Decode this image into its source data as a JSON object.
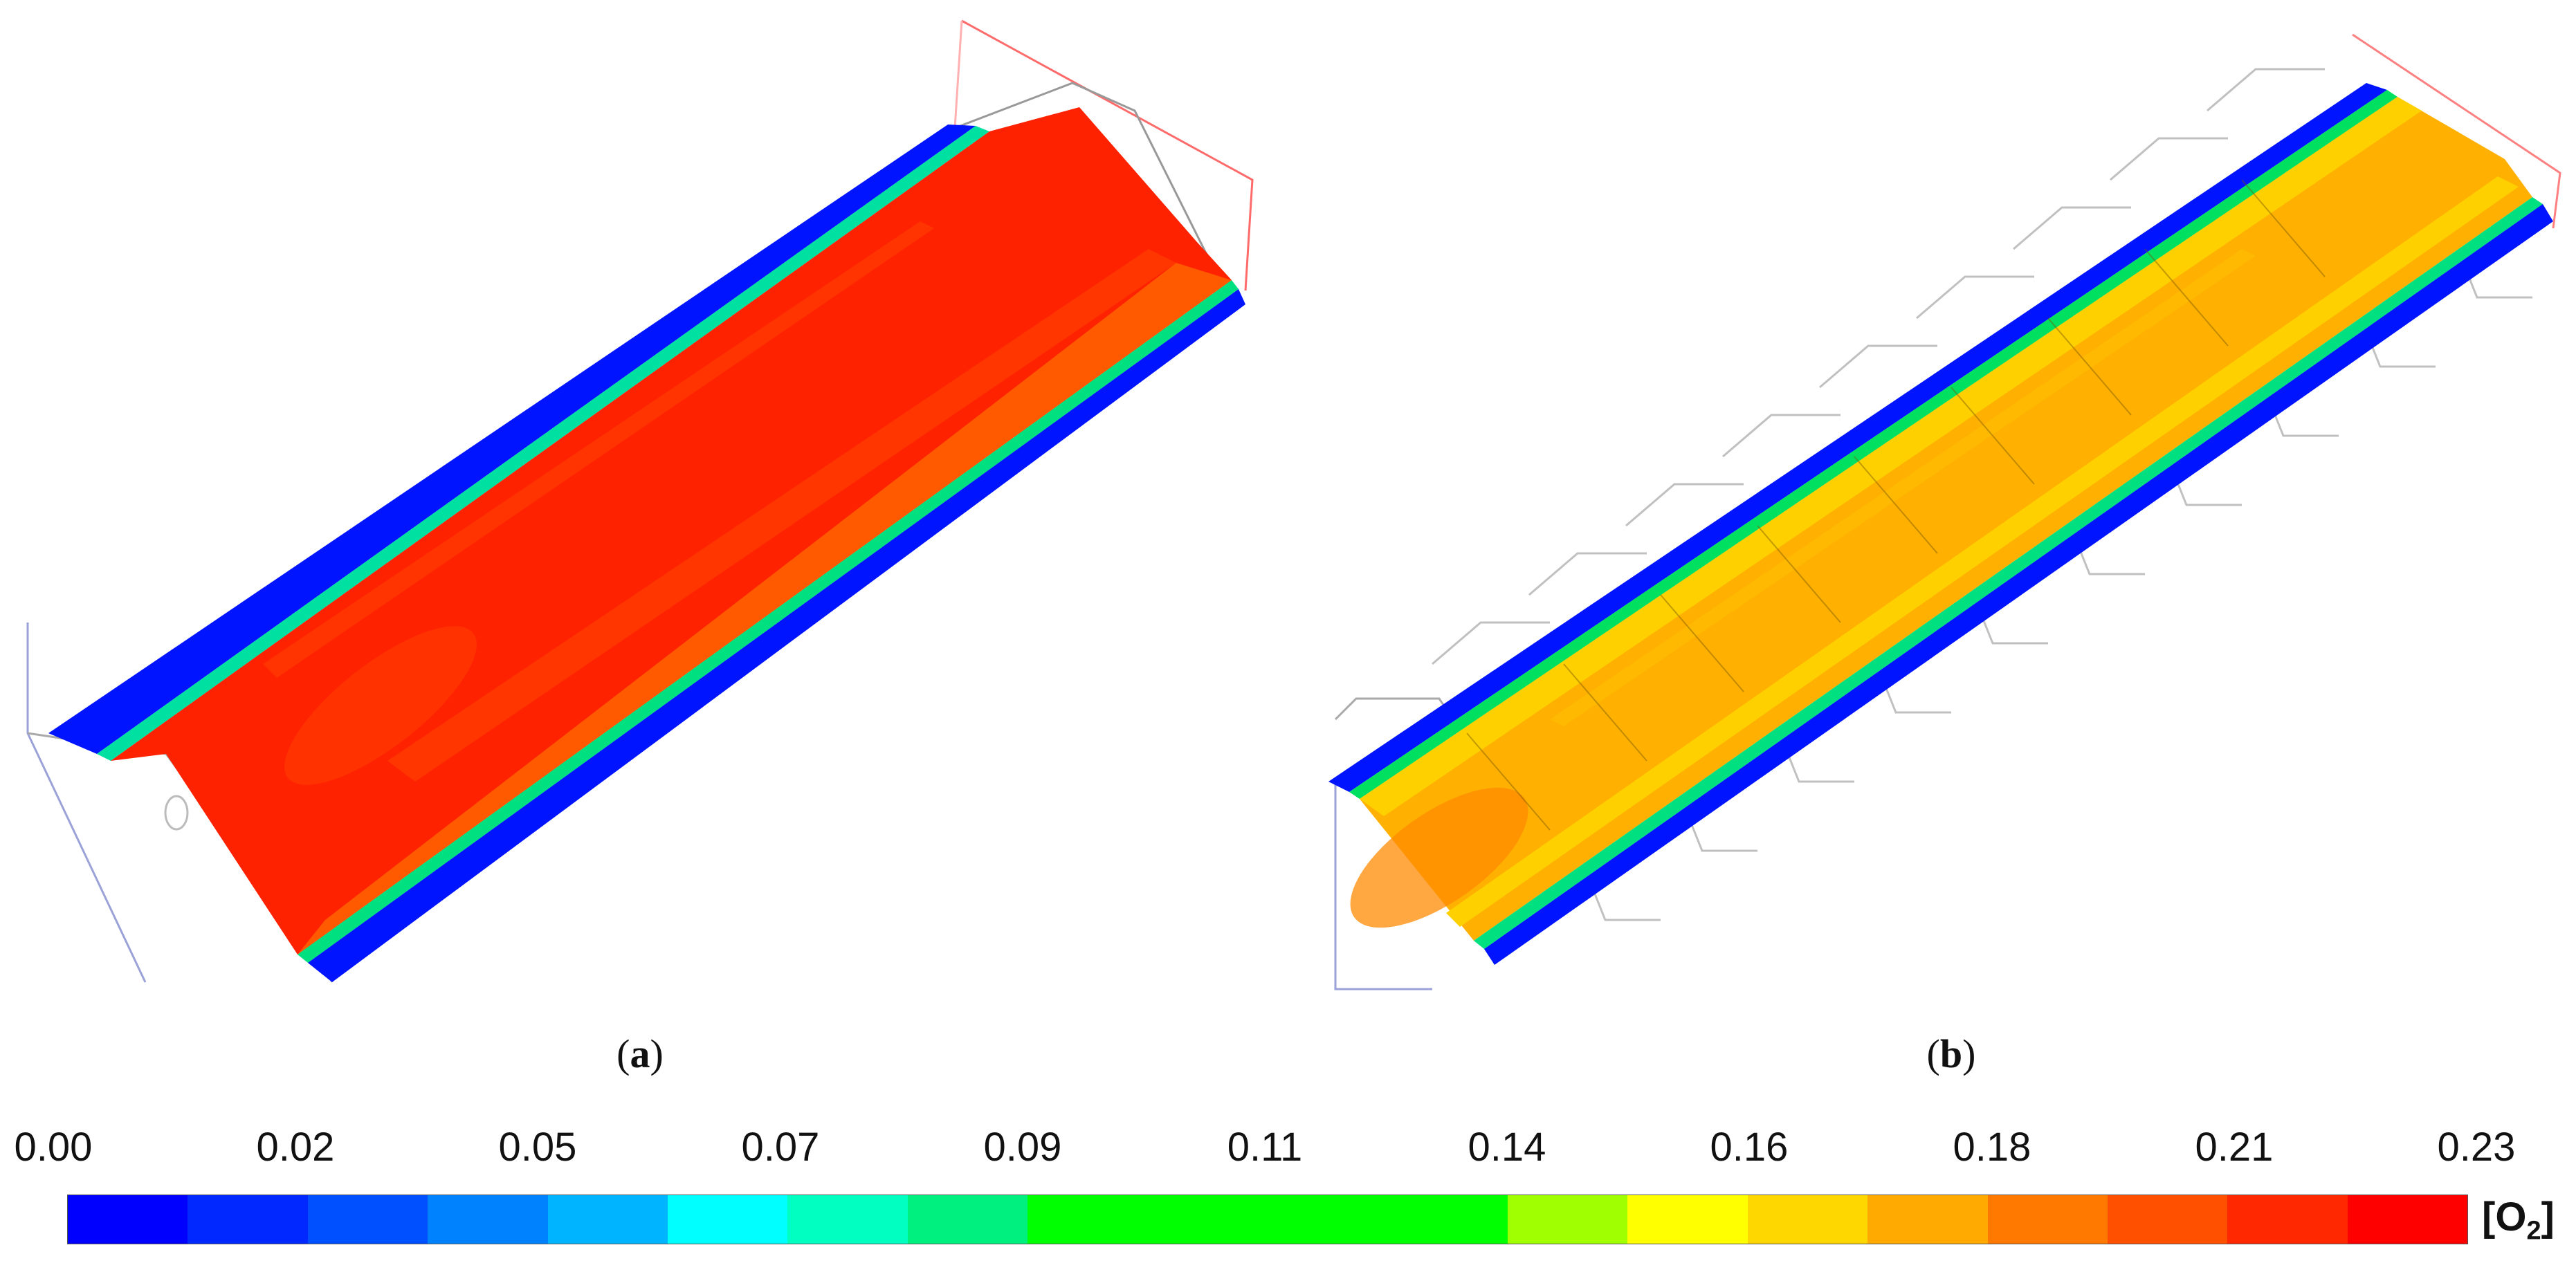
{
  "captions": {
    "a": "a",
    "b": "b"
  },
  "panels": [
    {
      "id": "a",
      "dominant_color": "#ff2200",
      "edge_color": "#0014ff"
    },
    {
      "id": "b",
      "dominant_color": "#ffb000",
      "edge_color": "#0014ff"
    }
  ],
  "colorbar": {
    "ticks": [
      "0.00",
      "0.02",
      "0.05",
      "0.07",
      "0.09",
      "0.11",
      "0.14",
      "0.16",
      "0.18",
      "0.21",
      "0.23"
    ],
    "unit_prefix": "[O",
    "unit_sub": "2",
    "unit_suffix": "]",
    "colors": [
      "#0000ff",
      "#0028ff",
      "#0050ff",
      "#0082ff",
      "#00b4ff",
      "#00ffff",
      "#00ffc0",
      "#00f080",
      "#00ff00",
      "#00ff00",
      "#00ff00",
      "#00ff00",
      "#a0ff00",
      "#ffff00",
      "#ffd700",
      "#ffaa00",
      "#ff7800",
      "#ff5000",
      "#ff2800",
      "#ff0000"
    ]
  }
}
